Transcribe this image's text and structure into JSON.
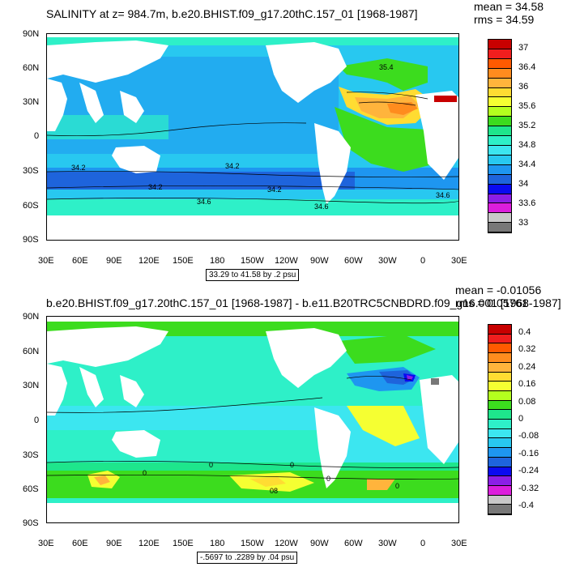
{
  "panels": [
    {
      "id": "top",
      "title": "SALINITY at z= 984.7m, b.e20.BHIST.f09_g17.20thC.157_01 [1968-1987]",
      "mean": "mean = 34.58",
      "rms": "rms = 34.59",
      "range": "33.29 to 41.58 by .2 psu",
      "lat_ticks": [
        "90N",
        "60N",
        "30N",
        "0",
        "30S",
        "60S",
        "90S"
      ],
      "lon_ticks": [
        "30E",
        "60E",
        "90E",
        "120E",
        "150E",
        "180",
        "150W",
        "120W",
        "90W",
        "60W",
        "30W",
        "0",
        "30E"
      ],
      "contour_labels": [
        "35.4",
        "34.2",
        "34.2",
        "34.2",
        "34.2",
        "34.6",
        "34.6",
        "34.6"
      ],
      "colorbar": {
        "labels": [
          "37",
          "36.4",
          "36",
          "35.6",
          "35.2",
          "34.8",
          "34.4",
          "34",
          "33.6",
          "33"
        ],
        "colors": [
          "#c80000",
          "#f01e1e",
          "#ff5a00",
          "#ff8c1e",
          "#ffb43c",
          "#ffdc32",
          "#f5ff32",
          "#b4ff1e",
          "#3cdc1e",
          "#1ee68c",
          "#2ef0c8",
          "#3ce6f0",
          "#28c8f0",
          "#1e96f0",
          "#1e64dc",
          "#0a0af0",
          "#8c1ee6",
          "#dc1edc",
          "#c8c8c8",
          "#787878"
        ]
      }
    },
    {
      "id": "bottom",
      "title": "b.e20.BHIST.f09_g17.20thC.157_01 [1968-1987] - b.e11.B20TRC5CNBDRD.f09_g16.001 [1968-1987]",
      "mean": "mean = -0.01056",
      "rms": "rms = 0.05761",
      "range": "-.5697 to .2289 by .04 psu",
      "lat_ticks": [
        "90N",
        "60N",
        "30N",
        "0",
        "30S",
        "60S",
        "90S"
      ],
      "lon_ticks": [
        "30E",
        "60E",
        "90E",
        "120E",
        "150E",
        "180",
        "150W",
        "120W",
        "90W",
        "60W",
        "30W",
        "0",
        "30E"
      ],
      "contour_labels": [
        "0",
        "0",
        "0",
        "0",
        "0",
        "08"
      ],
      "colorbar": {
        "labels": [
          "0.4",
          "0.32",
          "0.24",
          "0.16",
          "0.08",
          "0",
          "-0.08",
          "-0.16",
          "-0.24",
          "-0.32",
          "-0.4"
        ],
        "colors": [
          "#c80000",
          "#f01e1e",
          "#ff5a00",
          "#ff8c1e",
          "#ffb43c",
          "#ffdc32",
          "#f5ff32",
          "#b4ff1e",
          "#3cdc1e",
          "#1ee68c",
          "#2ef0c8",
          "#3ce6f0",
          "#28c8f0",
          "#1e96f0",
          "#1e64dc",
          "#0a0af0",
          "#8c1ee6",
          "#dc1edc",
          "#c8c8c8",
          "#787878"
        ]
      }
    }
  ]
}
